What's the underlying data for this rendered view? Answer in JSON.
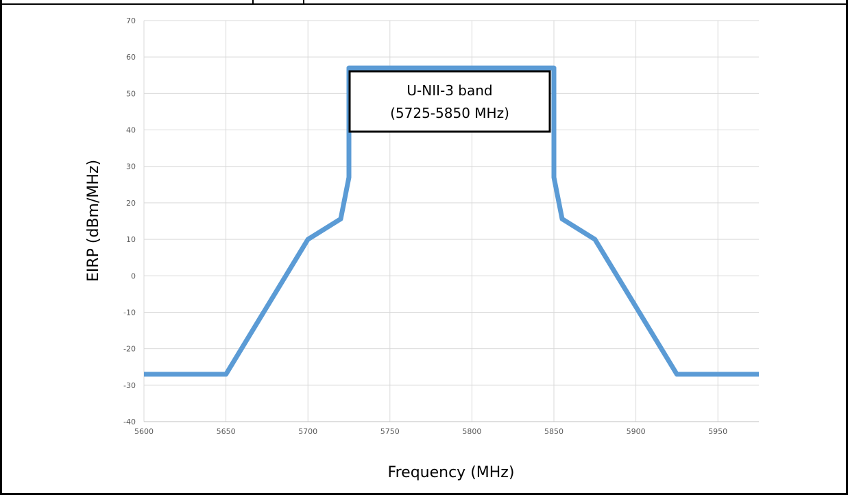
{
  "chart_data": {
    "type": "line",
    "title": "",
    "xlabel": "Frequency (MHz)",
    "ylabel": "EIRP (dBm/MHz)",
    "xlim": [
      5600,
      5975
    ],
    "ylim": [
      -40,
      70
    ],
    "xticks": [
      5600,
      5650,
      5700,
      5750,
      5800,
      5850,
      5900,
      5950
    ],
    "yticks": [
      -40,
      -30,
      -20,
      -10,
      0,
      10,
      20,
      30,
      40,
      50,
      60,
      70
    ],
    "grid": true,
    "series": [
      {
        "color": "#5b9bd5",
        "x": [
          5600,
          5650,
          5700,
          5720,
          5725,
          5725,
          5850,
          5850,
          5855,
          5875,
          5925,
          5975
        ],
        "y": [
          -27,
          -27,
          10,
          15.6,
          27,
          57,
          57,
          27,
          15.6,
          10,
          -27,
          -27
        ]
      }
    ],
    "annotation": {
      "line1": "U-NII-3 band",
      "line2": "(5725-5850 MHz)"
    }
  }
}
